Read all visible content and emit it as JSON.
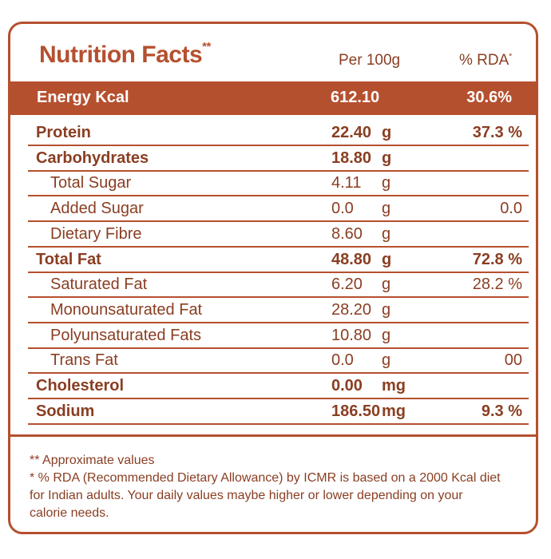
{
  "header": {
    "title": "Nutrition Facts",
    "title_mark": "**",
    "col_per": "Per 100g",
    "col_rda": "% RDA",
    "col_rda_mark": "*"
  },
  "energy": {
    "label": "Energy Kcal",
    "value": "612.10",
    "rda": "30.6%"
  },
  "rows": [
    {
      "name": "Protein",
      "value": "22.40",
      "unit": "g",
      "rda": "37.3 %",
      "bold": true,
      "sub": false
    },
    {
      "name": "Carbohydrates",
      "value": "18.80",
      "unit": "g",
      "rda": "",
      "bold": true,
      "sub": false
    },
    {
      "name": "Total Sugar",
      "value": "4.11",
      "unit": "g",
      "rda": "",
      "bold": false,
      "sub": true
    },
    {
      "name": "Added Sugar",
      "value": "0.0",
      "unit": "g",
      "rda": "0.0",
      "bold": false,
      "sub": true
    },
    {
      "name": "Dietary Fibre",
      "value": "8.60",
      "unit": "g",
      "rda": "",
      "bold": false,
      "sub": true
    },
    {
      "name": "Total Fat",
      "value": "48.80",
      "unit": "g",
      "rda": "72.8 %",
      "bold": true,
      "sub": false
    },
    {
      "name": "Saturated Fat",
      "value": "6.20",
      "unit": "g",
      "rda": "28.2 %",
      "bold": false,
      "sub": true
    },
    {
      "name": "Monounsaturated Fat",
      "value": "28.20",
      "unit": "g",
      "rda": "",
      "bold": false,
      "sub": true
    },
    {
      "name": "Polyunsaturated Fats",
      "value": "10.80",
      "unit": "g",
      "rda": "",
      "bold": false,
      "sub": true
    },
    {
      "name": "Trans Fat",
      "value": "0.0",
      "unit": "g",
      "rda": "00",
      "bold": false,
      "sub": true
    },
    {
      "name": "Cholesterol",
      "value": "0.00",
      "unit": "mg",
      "rda": "",
      "bold": true,
      "sub": false
    },
    {
      "name": "Sodium",
      "value": "186.50",
      "unit": "mg",
      "rda": "9.3 %",
      "bold": true,
      "sub": false
    }
  ],
  "footnotes": {
    "approx": "** Approximate values",
    "rda_line1": "*  % RDA (Recommended Dietary Allowance) by ICMR is based on a 2000 Kcal diet",
    "rda_line2": "for Indian adults. Your daily values maybe higher or lower depending on your",
    "rda_line3": "calorie needs."
  },
  "colors": {
    "accent": "#b5502f",
    "text": "#8a3e22"
  }
}
